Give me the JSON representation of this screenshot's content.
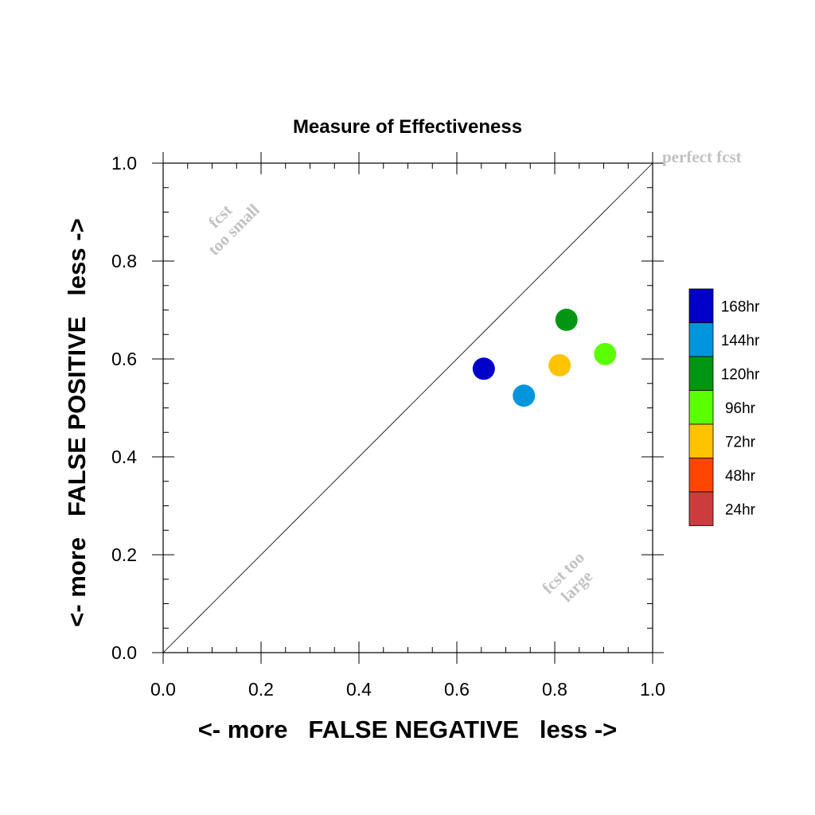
{
  "chart_data": {
    "type": "scatter",
    "title": "Measure of Effectiveness",
    "xlabel": "<- more   FALSE NEGATIVE   less ->",
    "ylabel": "<- more   FALSE POSITIVE   less ->",
    "xlim": [
      0,
      1
    ],
    "ylim": [
      0,
      1
    ],
    "x_ticks": [
      "0.0",
      "0.2",
      "0.4",
      "0.6",
      "0.8",
      "1.0"
    ],
    "y_ticks": [
      "0.0",
      "0.2",
      "0.4",
      "0.6",
      "0.8",
      "1.0"
    ],
    "grid": false,
    "diagonal_reference": true,
    "annotations": {
      "perfect": "perfect fcst",
      "too_small": [
        "fcst",
        "too small"
      ],
      "too_large": [
        "fcst too",
        "large"
      ]
    },
    "legend_position": "right",
    "legend": [
      {
        "label": "168hr",
        "color": "#0000c8"
      },
      {
        "label": "144hr",
        "color": "#0095dc"
      },
      {
        "label": "120hr",
        "color": "#009614"
      },
      {
        "label": "96hr",
        "color": "#5aff00"
      },
      {
        "label": "72hr",
        "color": "#ffc300"
      },
      {
        "label": "48hr",
        "color": "#ff4600"
      },
      {
        "label": "24hr",
        "color": "#cd3c3c"
      }
    ],
    "series": [
      {
        "name": "168hr",
        "color": "#0000c8",
        "x": 0.655,
        "y": 0.58
      },
      {
        "name": "144hr",
        "color": "#0095dc",
        "x": 0.737,
        "y": 0.525
      },
      {
        "name": "120hr",
        "color": "#009614",
        "x": 0.824,
        "y": 0.68
      },
      {
        "name": "96hr",
        "color": "#5aff00",
        "x": 0.903,
        "y": 0.61
      },
      {
        "name": "72hr",
        "color": "#ffc300",
        "x": 0.81,
        "y": 0.587
      }
    ]
  }
}
